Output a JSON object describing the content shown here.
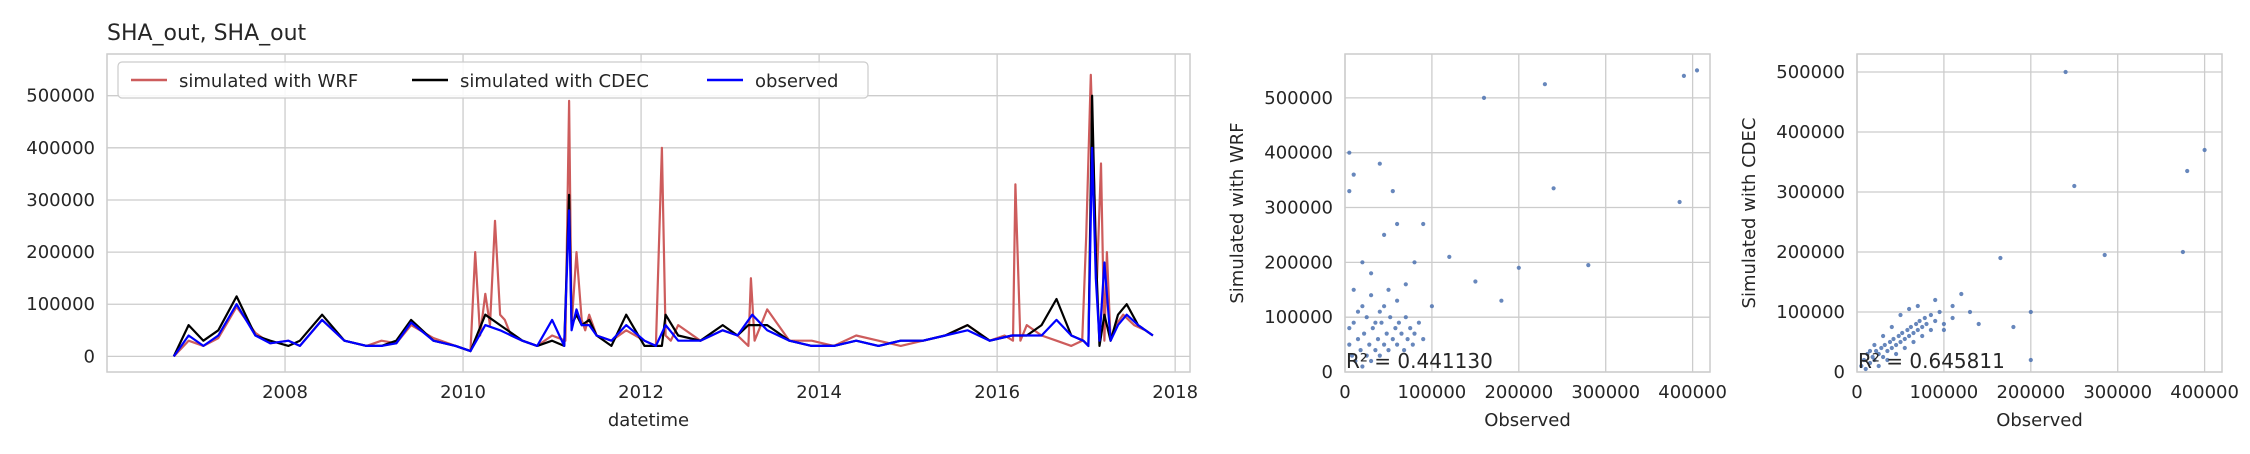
{
  "figure": {
    "title": "SHA_out, SHA_out"
  },
  "chart_data": [
    {
      "type": "line",
      "title": "SHA_out, SHA_out",
      "xlabel": "datetime",
      "ylabel": "",
      "xlim": [
        "2006-01-01",
        "2018-03-01"
      ],
      "ylim": [
        -30000,
        580000
      ],
      "x_ticks": [
        "2008",
        "2010",
        "2012",
        "2014",
        "2016",
        "2018"
      ],
      "y_ticks": [
        0,
        100000,
        200000,
        300000,
        400000,
        500000
      ],
      "grid": true,
      "legend": "top-left",
      "series": [
        {
          "name": "simulated with WRF",
          "color": "#cd5c5c",
          "x": [
            "2006-10-01",
            "2006-12-01",
            "2007-02-01",
            "2007-04-01",
            "2007-06-15",
            "2007-09-01",
            "2007-11-01",
            "2008-01-15",
            "2008-03-01",
            "2008-06-01",
            "2008-09-01",
            "2008-12-01",
            "2009-02-01",
            "2009-04-01",
            "2009-06-01",
            "2009-09-01",
            "2009-12-01",
            "2010-02-01",
            "2010-02-20",
            "2010-03-10",
            "2010-04-01",
            "2010-04-20",
            "2010-05-10",
            "2010-06-01",
            "2010-06-20",
            "2010-07-15",
            "2010-09-01",
            "2010-11-01",
            "2011-01-01",
            "2011-02-25",
            "2011-03-10",
            "2011-03-20",
            "2011-04-10",
            "2011-05-01",
            "2011-05-15",
            "2011-06-01",
            "2011-07-01",
            "2011-09-01",
            "2011-11-01",
            "2012-01-15",
            "2012-03-01",
            "2012-03-25",
            "2012-04-10",
            "2012-05-01",
            "2012-06-01",
            "2012-09-01",
            "2012-12-01",
            "2013-02-01",
            "2013-03-15",
            "2013-03-25",
            "2013-04-10",
            "2013-06-01",
            "2013-09-01",
            "2013-12-01",
            "2014-03-01",
            "2014-06-01",
            "2014-09-01",
            "2014-12-01",
            "2015-03-01",
            "2015-06-01",
            "2015-09-01",
            "2015-12-01",
            "2016-02-01",
            "2016-03-05",
            "2016-03-15",
            "2016-04-05",
            "2016-05-01",
            "2016-07-01",
            "2016-09-01",
            "2016-11-01",
            "2016-12-15",
            "2017-01-01",
            "2017-01-20",
            "2017-02-05",
            "2017-02-15",
            "2017-03-01",
            "2017-03-15",
            "2017-03-25",
            "2017-04-10",
            "2017-05-01",
            "2017-06-01",
            "2017-07-15",
            "2017-09-01",
            "2017-10-01"
          ],
          "values": [
            0,
            30000,
            20000,
            35000,
            95000,
            45000,
            25000,
            30000,
            20000,
            70000,
            30000,
            20000,
            30000,
            25000,
            60000,
            35000,
            20000,
            10000,
            200000,
            40000,
            120000,
            60000,
            260000,
            80000,
            70000,
            40000,
            30000,
            20000,
            40000,
            30000,
            490000,
            60000,
            200000,
            70000,
            50000,
            80000,
            40000,
            30000,
            50000,
            30000,
            20000,
            400000,
            40000,
            30000,
            60000,
            30000,
            50000,
            40000,
            20000,
            150000,
            30000,
            90000,
            30000,
            30000,
            20000,
            40000,
            30000,
            20000,
            30000,
            40000,
            60000,
            30000,
            40000,
            30000,
            330000,
            30000,
            60000,
            40000,
            30000,
            20000,
            30000,
            230000,
            540000,
            300000,
            150000,
            370000,
            30000,
            200000,
            30000,
            60000,
            80000,
            60000,
            50000,
            40000
          ]
        },
        {
          "name": "simulated with CDEC",
          "color": "#000000",
          "x": [
            "2006-10-01",
            "2006-12-01",
            "2007-02-01",
            "2007-04-01",
            "2007-06-15",
            "2007-09-01",
            "2007-11-01",
            "2008-01-15",
            "2008-03-01",
            "2008-06-01",
            "2008-09-01",
            "2008-12-01",
            "2009-02-01",
            "2009-04-01",
            "2009-06-01",
            "2009-09-01",
            "2009-12-01",
            "2010-02-01",
            "2010-04-01",
            "2010-06-01",
            "2010-09-01",
            "2010-11-01",
            "2011-01-01",
            "2011-02-20",
            "2011-03-10",
            "2011-03-20",
            "2011-04-10",
            "2011-05-01",
            "2011-06-01",
            "2011-07-01",
            "2011-09-01",
            "2011-11-01",
            "2012-01-15",
            "2012-03-01",
            "2012-03-25",
            "2012-04-10",
            "2012-06-01",
            "2012-09-01",
            "2012-12-01",
            "2013-02-01",
            "2013-03-15",
            "2013-06-01",
            "2013-09-01",
            "2013-12-01",
            "2014-03-01",
            "2014-06-01",
            "2014-09-01",
            "2014-12-01",
            "2015-03-01",
            "2015-06-01",
            "2015-09-01",
            "2015-12-01",
            "2016-03-01",
            "2016-05-01",
            "2016-07-01",
            "2016-09-01",
            "2016-11-01",
            "2016-12-20",
            "2017-01-10",
            "2017-01-25",
            "2017-02-10",
            "2017-02-25",
            "2017-03-15",
            "2017-04-10",
            "2017-05-10",
            "2017-06-15",
            "2017-08-01",
            "2017-10-01"
          ],
          "values": [
            0,
            60000,
            30000,
            50000,
            115000,
            40000,
            30000,
            20000,
            30000,
            80000,
            30000,
            20000,
            20000,
            30000,
            70000,
            30000,
            20000,
            10000,
            80000,
            60000,
            30000,
            20000,
            30000,
            20000,
            310000,
            60000,
            80000,
            60000,
            70000,
            40000,
            20000,
            80000,
            20000,
            20000,
            20000,
            80000,
            40000,
            30000,
            60000,
            40000,
            60000,
            60000,
            30000,
            20000,
            20000,
            30000,
            20000,
            30000,
            30000,
            40000,
            60000,
            30000,
            40000,
            40000,
            60000,
            110000,
            40000,
            30000,
            20000,
            500000,
            200000,
            20000,
            80000,
            30000,
            80000,
            100000,
            60000,
            40000
          ]
        },
        {
          "name": "observed",
          "color": "#0000ff",
          "x": [
            "2006-10-01",
            "2006-12-01",
            "2007-02-01",
            "2007-04-01",
            "2007-06-15",
            "2007-09-01",
            "2007-11-01",
            "2008-01-15",
            "2008-03-01",
            "2008-06-01",
            "2008-09-01",
            "2008-12-01",
            "2009-02-01",
            "2009-04-01",
            "2009-06-01",
            "2009-09-01",
            "2009-12-01",
            "2010-02-01",
            "2010-04-01",
            "2010-06-01",
            "2010-09-01",
            "2010-11-01",
            "2011-01-01",
            "2011-02-20",
            "2011-03-10",
            "2011-03-20",
            "2011-04-10",
            "2011-05-01",
            "2011-06-01",
            "2011-07-01",
            "2011-09-01",
            "2011-11-01",
            "2012-01-15",
            "2012-03-01",
            "2012-04-10",
            "2012-06-01",
            "2012-09-01",
            "2012-12-01",
            "2013-02-01",
            "2013-04-01",
            "2013-06-01",
            "2013-09-01",
            "2013-12-01",
            "2014-03-01",
            "2014-06-01",
            "2014-09-01",
            "2014-12-01",
            "2015-03-01",
            "2015-06-01",
            "2015-09-01",
            "2015-12-01",
            "2016-03-01",
            "2016-05-01",
            "2016-07-01",
            "2016-09-01",
            "2016-11-01",
            "2016-12-20",
            "2017-01-10",
            "2017-01-25",
            "2017-02-10",
            "2017-02-25",
            "2017-03-15",
            "2017-04-10",
            "2017-05-10",
            "2017-06-15",
            "2017-08-01",
            "2017-10-01"
          ],
          "values": [
            0,
            40000,
            20000,
            40000,
            100000,
            40000,
            25000,
            30000,
            20000,
            70000,
            30000,
            20000,
            20000,
            25000,
            65000,
            30000,
            20000,
            10000,
            60000,
            50000,
            30000,
            20000,
            70000,
            20000,
            280000,
            50000,
            90000,
            60000,
            60000,
            40000,
            30000,
            60000,
            30000,
            20000,
            60000,
            30000,
            30000,
            50000,
            40000,
            80000,
            50000,
            30000,
            20000,
            20000,
            30000,
            20000,
            30000,
            30000,
            40000,
            50000,
            30000,
            40000,
            40000,
            40000,
            70000,
            40000,
            30000,
            20000,
            400000,
            150000,
            30000,
            180000,
            30000,
            60000,
            80000,
            60000,
            40000
          ]
        }
      ]
    },
    {
      "type": "scatter",
      "title": "",
      "xlabel": "Observed",
      "ylabel": "Simulated with WRF",
      "xlim": [
        0,
        420000
      ],
      "ylim": [
        0,
        580000
      ],
      "x_ticks": [
        0,
        100000,
        200000,
        300000,
        400000
      ],
      "y_ticks": [
        0,
        100000,
        200000,
        300000,
        400000,
        500000
      ],
      "grid": true,
      "annotation": "R² = 0.441130",
      "color": "#4c72b0",
      "points": [
        [
          5000,
          400000
        ],
        [
          10000,
          360000
        ],
        [
          5000,
          330000
        ],
        [
          40000,
          380000
        ],
        [
          55000,
          330000
        ],
        [
          160000,
          500000
        ],
        [
          230000,
          525000
        ],
        [
          390000,
          540000
        ],
        [
          405000,
          550000
        ],
        [
          240000,
          335000
        ],
        [
          385000,
          310000
        ],
        [
          200000,
          190000
        ],
        [
          280000,
          195000
        ],
        [
          60000,
          270000
        ],
        [
          45000,
          250000
        ],
        [
          90000,
          270000
        ],
        [
          120000,
          210000
        ],
        [
          150000,
          165000
        ],
        [
          80000,
          200000
        ],
        [
          20000,
          200000
        ],
        [
          30000,
          180000
        ],
        [
          70000,
          160000
        ],
        [
          100000,
          120000
        ],
        [
          180000,
          130000
        ],
        [
          10000,
          150000
        ],
        [
          5000,
          50000
        ],
        [
          8000,
          30000
        ],
        [
          12000,
          20000
        ],
        [
          15000,
          60000
        ],
        [
          18000,
          40000
        ],
        [
          20000,
          10000
        ],
        [
          22000,
          70000
        ],
        [
          25000,
          30000
        ],
        [
          28000,
          50000
        ],
        [
          30000,
          20000
        ],
        [
          32000,
          80000
        ],
        [
          35000,
          40000
        ],
        [
          38000,
          60000
        ],
        [
          40000,
          30000
        ],
        [
          42000,
          90000
        ],
        [
          45000,
          50000
        ],
        [
          48000,
          70000
        ],
        [
          50000,
          40000
        ],
        [
          52000,
          100000
        ],
        [
          55000,
          60000
        ],
        [
          58000,
          80000
        ],
        [
          60000,
          50000
        ],
        [
          62000,
          90000
        ],
        [
          65000,
          70000
        ],
        [
          68000,
          40000
        ],
        [
          70000,
          100000
        ],
        [
          72000,
          60000
        ],
        [
          75000,
          80000
        ],
        [
          78000,
          50000
        ],
        [
          80000,
          70000
        ],
        [
          85000,
          90000
        ],
        [
          90000,
          60000
        ],
        [
          10000,
          90000
        ],
        [
          20000,
          120000
        ],
        [
          30000,
          140000
        ],
        [
          40000,
          110000
        ],
        [
          50000,
          150000
        ],
        [
          60000,
          130000
        ],
        [
          25000,
          100000
        ],
        [
          35000,
          90000
        ],
        [
          45000,
          120000
        ],
        [
          15000,
          110000
        ],
        [
          5000,
          80000
        ]
      ]
    },
    {
      "type": "scatter",
      "title": "",
      "xlabel": "Observed",
      "ylabel": "Simulated with CDEC",
      "xlim": [
        0,
        420000
      ],
      "ylim": [
        0,
        530000
      ],
      "x_ticks": [
        0,
        100000,
        200000,
        300000,
        400000
      ],
      "y_ticks": [
        0,
        100000,
        200000,
        300000,
        400000,
        500000
      ],
      "grid": true,
      "annotation": "R² = 0.645811",
      "color": "#4c72b0",
      "points": [
        [
          240000,
          500000
        ],
        [
          400000,
          370000
        ],
        [
          380000,
          335000
        ],
        [
          250000,
          310000
        ],
        [
          375000,
          200000
        ],
        [
          285000,
          195000
        ],
        [
          165000,
          190000
        ],
        [
          200000,
          100000
        ],
        [
          200000,
          20000
        ],
        [
          120000,
          130000
        ],
        [
          90000,
          120000
        ],
        [
          110000,
          90000
        ],
        [
          140000,
          80000
        ],
        [
          180000,
          75000
        ],
        [
          100000,
          70000
        ],
        [
          5000,
          10000
        ],
        [
          8000,
          20000
        ],
        [
          10000,
          5000
        ],
        [
          12000,
          30000
        ],
        [
          15000,
          15000
        ],
        [
          18000,
          25000
        ],
        [
          20000,
          20000
        ],
        [
          22000,
          35000
        ],
        [
          25000,
          30000
        ],
        [
          28000,
          40000
        ],
        [
          30000,
          25000
        ],
        [
          32000,
          45000
        ],
        [
          35000,
          35000
        ],
        [
          38000,
          50000
        ],
        [
          40000,
          40000
        ],
        [
          42000,
          55000
        ],
        [
          45000,
          45000
        ],
        [
          48000,
          60000
        ],
        [
          50000,
          50000
        ],
        [
          52000,
          65000
        ],
        [
          55000,
          55000
        ],
        [
          58000,
          70000
        ],
        [
          60000,
          60000
        ],
        [
          62000,
          75000
        ],
        [
          65000,
          65000
        ],
        [
          68000,
          80000
        ],
        [
          70000,
          70000
        ],
        [
          72000,
          85000
        ],
        [
          75000,
          75000
        ],
        [
          78000,
          90000
        ],
        [
          80000,
          80000
        ],
        [
          85000,
          95000
        ],
        [
          90000,
          85000
        ],
        [
          95000,
          100000
        ],
        [
          60000,
          105000
        ],
        [
          70000,
          110000
        ],
        [
          50000,
          95000
        ],
        [
          40000,
          75000
        ],
        [
          30000,
          60000
        ],
        [
          20000,
          45000
        ],
        [
          45000,
          30000
        ],
        [
          55000,
          40000
        ],
        [
          65000,
          50000
        ],
        [
          75000,
          60000
        ],
        [
          85000,
          70000
        ],
        [
          100000,
          80000
        ],
        [
          110000,
          110000
        ],
        [
          130000,
          100000
        ],
        [
          25000,
          10000
        ],
        [
          35000,
          20000
        ],
        [
          15000,
          35000
        ]
      ]
    }
  ]
}
